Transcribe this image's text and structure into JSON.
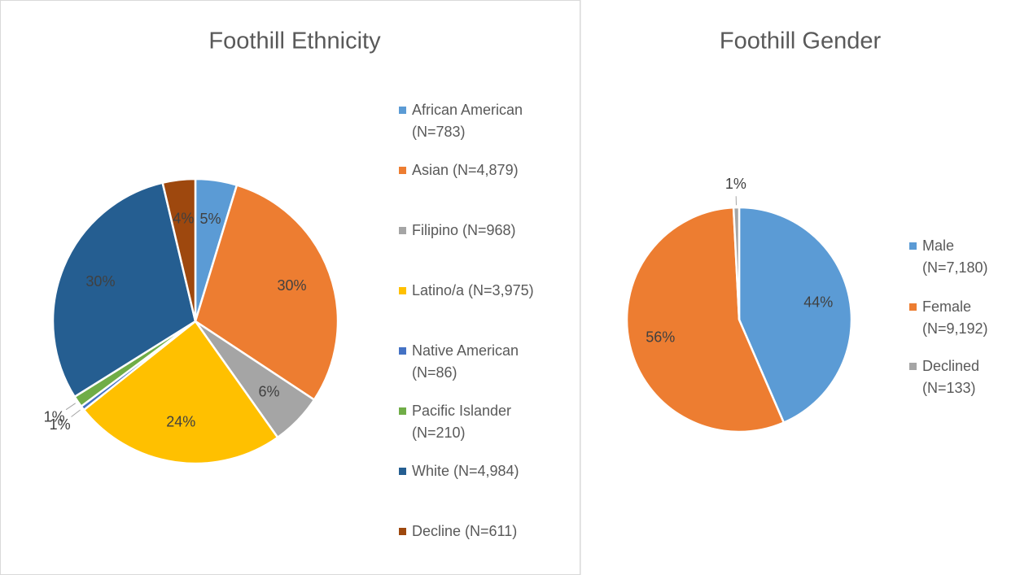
{
  "chart_data": [
    {
      "type": "pie",
      "title": "Foothill Ethnicity",
      "labels": [
        "African American (N=783)",
        "Asian (N=4,879)",
        "Filipino (N=968)",
        "Latino/a (N=3,975)",
        "Native American (N=86)",
        "Pacific Islander (N=210)",
        "White (N=4,984)",
        "Decline (N=611)"
      ],
      "values": [
        4.7,
        29.6,
        5.9,
        24.1,
        0.5,
        1.3,
        30.2,
        3.7
      ],
      "value_labels": [
        "5%",
        "30%",
        "6%",
        "24%",
        "1%",
        "1%",
        "30%",
        "4%"
      ],
      "colors": [
        "#5b9bd5",
        "#ed7d31",
        "#a5a5a5",
        "#ffc000",
        "#4472c4",
        "#70ad47",
        "#255e91",
        "#9e480e"
      ]
    },
    {
      "type": "pie",
      "title": "Foothill Gender",
      "labels": [
        "Male (N=7,180)",
        "Female (N=9,192)",
        "Declined (N=133)"
      ],
      "values": [
        43.5,
        55.7,
        0.8
      ],
      "value_labels": [
        "44%",
        "56%",
        "1%"
      ],
      "colors": [
        "#5b9bd5",
        "#ed7d31",
        "#a5a5a5"
      ]
    }
  ]
}
